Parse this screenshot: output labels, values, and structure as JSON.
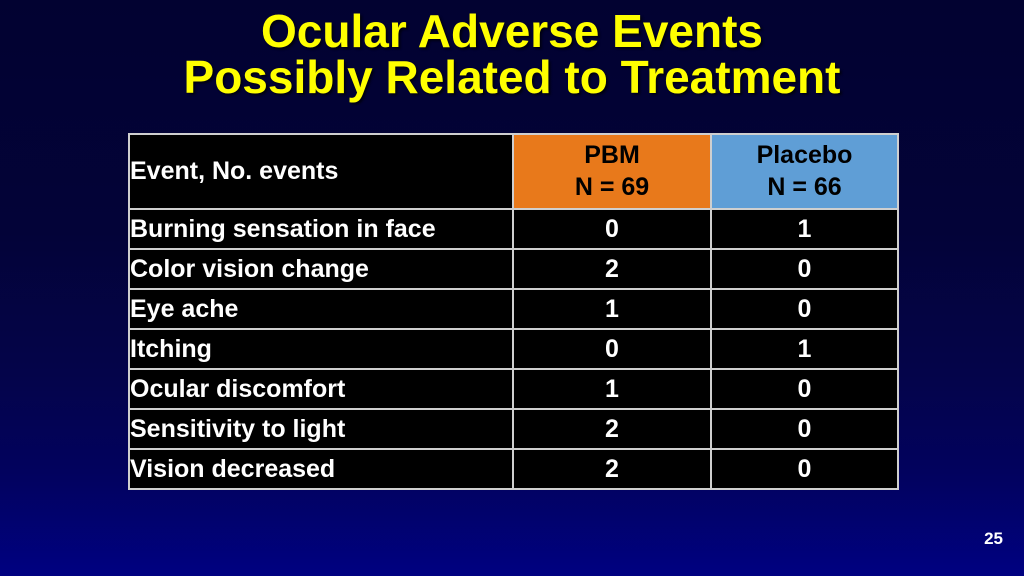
{
  "slide": {
    "title_line1": "Ocular Adverse Events",
    "title_line2": "Possibly Related to Treatment",
    "page_number": "25"
  },
  "table": {
    "header": {
      "event_column_label": "Event, No. events",
      "pbm_label": "PBM",
      "pbm_sub": "N = 69",
      "placebo_label": "Placebo",
      "placebo_sub": "N = 66"
    },
    "rows": [
      {
        "event": "Burning sensation in face",
        "pbm": "0",
        "placebo": "1"
      },
      {
        "event": "Color vision change",
        "pbm": "2",
        "placebo": "0"
      },
      {
        "event": "Eye ache",
        "pbm": "1",
        "placebo": "0"
      },
      {
        "event": "Itching",
        "pbm": "0",
        "placebo": "1"
      },
      {
        "event": "Ocular discomfort",
        "pbm": "1",
        "placebo": "0"
      },
      {
        "event": "Sensitivity to light",
        "pbm": "2",
        "placebo": "0"
      },
      {
        "event": "Vision decreased",
        "pbm": "2",
        "placebo": "0"
      }
    ]
  },
  "colors": {
    "background_top": "#020231",
    "background_bottom": "#000181",
    "title_text": "#ffff00",
    "grid_border": "#cfcfcf",
    "cell_background": "#000000",
    "cell_text": "#ffffff",
    "pbm_header_background": "#e8791b",
    "placebo_header_background": "#5f9ed6",
    "header_text": "#000000"
  }
}
